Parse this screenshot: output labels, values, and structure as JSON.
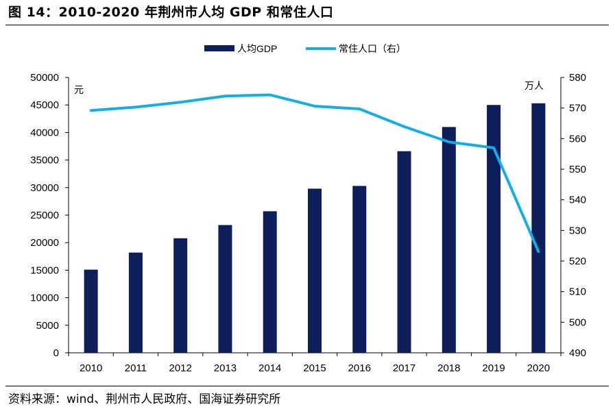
{
  "title": "图 14：2010-2020 年荆州市人均 GDP 和常住人口",
  "source": "资料来源：wind、荆州市人民政府、国海证券研究所",
  "chart_data": {
    "type": "bar",
    "categories": [
      "2010",
      "2011",
      "2012",
      "2013",
      "2014",
      "2015",
      "2016",
      "2017",
      "2018",
      "2019",
      "2020"
    ],
    "series": [
      {
        "name": "人均GDP",
        "type": "bar",
        "axis": "left",
        "color": "#0d1e5a",
        "values": [
          15100,
          18200,
          20800,
          23200,
          25700,
          29800,
          30300,
          36600,
          41000,
          45000,
          45300
        ]
      },
      {
        "name": "常住人口（右）",
        "type": "line",
        "axis": "right",
        "color": "#12aee8",
        "values": [
          569.2,
          570.3,
          571.9,
          573.9,
          574.3,
          570.6,
          569.7,
          563.9,
          558.9,
          557.0,
          523.1
        ]
      }
    ],
    "y_left": {
      "unit": "元",
      "min": 0,
      "max": 50000,
      "ticks": [
        0,
        5000,
        10000,
        15000,
        20000,
        25000,
        30000,
        35000,
        40000,
        45000,
        50000
      ]
    },
    "y_right": {
      "unit": "万人",
      "min": 490,
      "max": 580,
      "ticks": [
        490,
        500,
        510,
        520,
        530,
        540,
        550,
        560,
        570,
        580
      ]
    },
    "grid": false,
    "legend": "top-center"
  }
}
